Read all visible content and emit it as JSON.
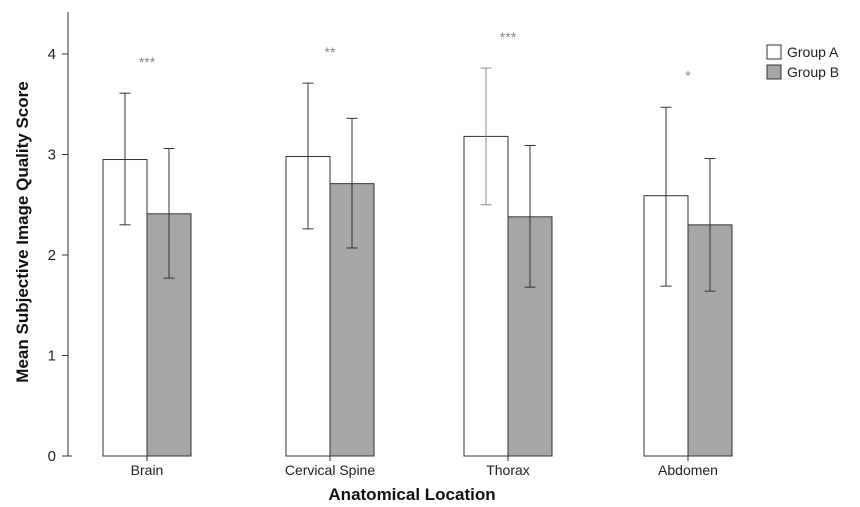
{
  "chart_data": {
    "type": "bar",
    "xlabel": "Anatomical Location",
    "ylabel": "Mean Subjective Image Quality Score",
    "ylim": [
      0,
      4.4
    ],
    "yticks": [
      0,
      1,
      2,
      3,
      4
    ],
    "categories": [
      "Brain",
      "Cervical Spine",
      "Thorax",
      "Abdomen"
    ],
    "series": [
      {
        "name": "Group A",
        "color": "#ffffff",
        "values": [
          2.95,
          2.98,
          3.18,
          2.59
        ],
        "err_low": [
          2.3,
          2.26,
          2.5,
          1.69
        ],
        "err_high": [
          3.61,
          3.71,
          3.86,
          3.47
        ]
      },
      {
        "name": "Group B",
        "color": "#a6a6a6",
        "values": [
          2.41,
          2.71,
          2.38,
          2.3
        ],
        "err_low": [
          1.77,
          2.07,
          1.68,
          1.64
        ],
        "err_high": [
          3.06,
          3.36,
          3.09,
          2.96
        ]
      }
    ],
    "significance": [
      "***",
      "**",
      "***",
      "*"
    ],
    "legend_position": "top-right",
    "grid": false
  }
}
